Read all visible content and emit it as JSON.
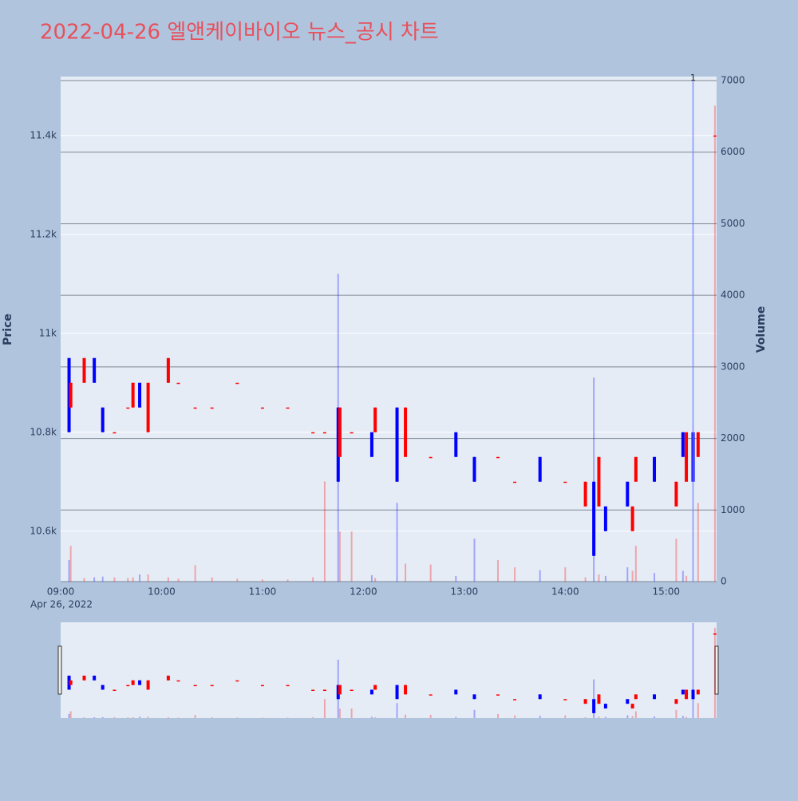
{
  "chart_data": {
    "type": "candlestick",
    "title": "2022-04-26 엘앤케이바이오 뉴스_공시 차트",
    "y_label": "Price",
    "y2_label": "Volume",
    "x_date_label": "Apr 26, 2022",
    "x": [
      "2022-04-26 09:05",
      "2022-04-26 09:06",
      "2022-04-26 09:14",
      "2022-04-26 09:20",
      "2022-04-26 09:25",
      "2022-04-26 09:32",
      "2022-04-26 09:40",
      "2022-04-26 09:43",
      "2022-04-26 09:47",
      "2022-04-26 09:52",
      "2022-04-26 10:04",
      "2022-04-26 10:10",
      "2022-04-26 10:20",
      "2022-04-26 10:30",
      "2022-04-26 10:45",
      "2022-04-26 11:00",
      "2022-04-26 11:15",
      "2022-04-26 11:30",
      "2022-04-26 11:37",
      "2022-04-26 11:45",
      "2022-04-26 11:46",
      "2022-04-26 11:53",
      "2022-04-26 12:05",
      "2022-04-26 12:07",
      "2022-04-26 12:20",
      "2022-04-26 12:25",
      "2022-04-26 12:40",
      "2022-04-26 12:55",
      "2022-04-26 13:06",
      "2022-04-26 13:20",
      "2022-04-26 13:30",
      "2022-04-26 13:45",
      "2022-04-26 14:00",
      "2022-04-26 14:12",
      "2022-04-26 14:17",
      "2022-04-26 14:20",
      "2022-04-26 14:24",
      "2022-04-26 14:37",
      "2022-04-26 14:40",
      "2022-04-26 14:42",
      "2022-04-26 14:53",
      "2022-04-26 15:06",
      "2022-04-26 15:10",
      "2022-04-26 15:12",
      "2022-04-26 15:16",
      "2022-04-26 15:19",
      "2022-04-26 15:29"
    ],
    "open": [
      10950,
      10850,
      10900,
      10950,
      10850,
      10800,
      10850,
      10850,
      10900,
      10800,
      10900,
      10900,
      10850,
      10850,
      10900,
      10850,
      10850,
      10800,
      10800,
      10850,
      10750,
      10800,
      10800,
      10800,
      10850,
      10750,
      10750,
      10800,
      10750,
      10750,
      10700,
      10750,
      10700,
      10650,
      10700,
      10650,
      10650,
      10700,
      10600,
      10700,
      10750,
      10650,
      10800,
      10700,
      10800,
      10750,
      11400
    ],
    "high": [
      10950,
      10900,
      10950,
      10950,
      10850,
      10800,
      10850,
      10900,
      10900,
      10900,
      10950,
      10900,
      10850,
      10850,
      10900,
      10850,
      10850,
      10800,
      10800,
      10850,
      10850,
      10800,
      10800,
      10850,
      10850,
      10850,
      10750,
      10800,
      10750,
      10750,
      10700,
      10750,
      10700,
      10700,
      10700,
      10750,
      10650,
      10700,
      10650,
      10750,
      10750,
      10700,
      10800,
      10800,
      10800,
      10800,
      11400
    ],
    "low": [
      10800,
      10850,
      10900,
      10900,
      10800,
      10800,
      10850,
      10850,
      10850,
      10800,
      10900,
      10900,
      10850,
      10850,
      10900,
      10850,
      10850,
      10800,
      10800,
      10700,
      10750,
      10800,
      10750,
      10800,
      10700,
      10750,
      10750,
      10750,
      10700,
      10750,
      10700,
      10700,
      10700,
      10650,
      10550,
      10650,
      10600,
      10650,
      10600,
      10700,
      10700,
      10650,
      10750,
      10700,
      10700,
      10750,
      11400
    ],
    "close": [
      10800,
      10900,
      10950,
      10900,
      10800,
      10800,
      10850,
      10900,
      10850,
      10900,
      10950,
      10900,
      10850,
      10850,
      10900,
      10850,
      10850,
      10800,
      10800,
      10700,
      10850,
      10800,
      10750,
      10850,
      10700,
      10850,
      10750,
      10750,
      10700,
      10750,
      10700,
      10700,
      10700,
      10700,
      10550,
      10750,
      10600,
      10650,
      10650,
      10750,
      10700,
      10700,
      10750,
      10800,
      10700,
      10800,
      11400
    ],
    "volume": [
      300,
      500,
      50,
      60,
      70,
      60,
      50,
      60,
      100,
      100,
      60,
      40,
      230,
      60,
      40,
      30,
      30,
      60,
      1400,
      4300,
      700,
      700,
      90,
      50,
      1100,
      250,
      240,
      80,
      600,
      300,
      200,
      160,
      200,
      60,
      2850,
      100,
      80,
      200,
      150,
      500,
      120,
      600,
      150,
      80,
      7000,
      1100,
      6650
    ],
    "increasing_color": "#ff0000",
    "decreasing_color": "#0000ff",
    "xlim": [
      "2022-04-26 09:00",
      "2022-04-26 15:30"
    ],
    "xticks": [
      {
        "value": "2022-04-26 09:00",
        "label": "09:00"
      },
      {
        "value": "2022-04-26 10:00",
        "label": "10:00"
      },
      {
        "value": "2022-04-26 11:00",
        "label": "11:00"
      },
      {
        "value": "2022-04-26 12:00",
        "label": "12:00"
      },
      {
        "value": "2022-04-26 13:00",
        "label": "13:00"
      },
      {
        "value": "2022-04-26 14:00",
        "label": "14:00"
      },
      {
        "value": "2022-04-26 15:00",
        "label": "15:00"
      }
    ],
    "ylim": [
      10498,
      11519
    ],
    "yticks": [
      {
        "value": 10600,
        "label": "10.6k"
      },
      {
        "value": 10800,
        "label": "10.8k"
      },
      {
        "value": 11000,
        "label": "11k"
      },
      {
        "value": 11200,
        "label": "11.2k"
      },
      {
        "value": 11400,
        "label": "11.4k"
      }
    ],
    "y2lim": [
      0,
      7056
    ],
    "y2ticks": [
      0,
      1000,
      2000,
      3000,
      4000,
      5000,
      6000,
      7000
    ],
    "annotation": {
      "text": "1",
      "x": "2022-04-26 15:16"
    },
    "grid": true,
    "range_slider": true
  }
}
